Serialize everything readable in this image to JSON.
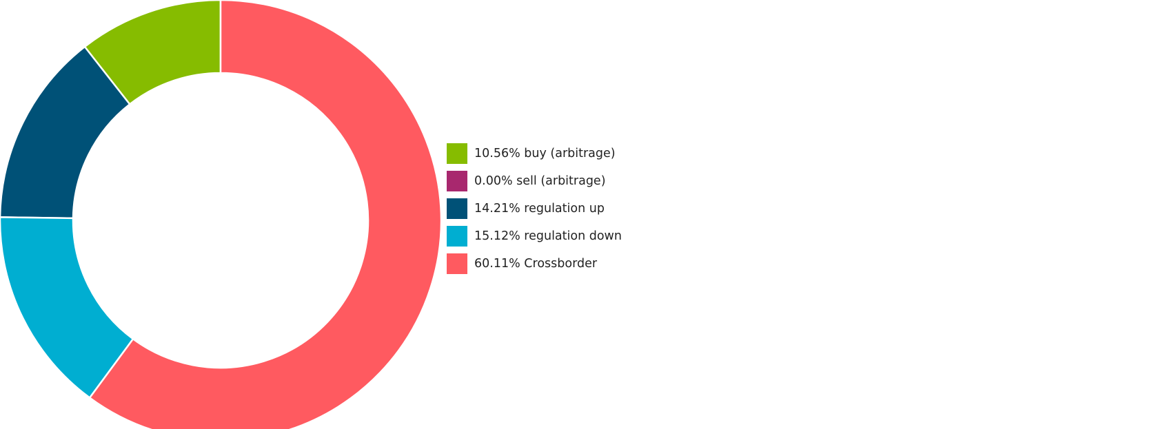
{
  "chart_data": {
    "type": "pie",
    "donut": true,
    "legend_position": "right",
    "slices": [
      {
        "value": 10.56,
        "label": "10.56% buy (arbitrage)",
        "color": "#86bc00"
      },
      {
        "value": 0.0,
        "label": "0.00% sell (arbitrage)",
        "color": "#a8286e"
      },
      {
        "value": 14.21,
        "label": "14.21% regulation up",
        "color": "#005177"
      },
      {
        "value": 15.12,
        "label": "15.12% regulation down",
        "color": "#00aed1"
      },
      {
        "value": 60.11,
        "label": "60.11% Crossborder",
        "color": "#ff5a60"
      }
    ]
  }
}
